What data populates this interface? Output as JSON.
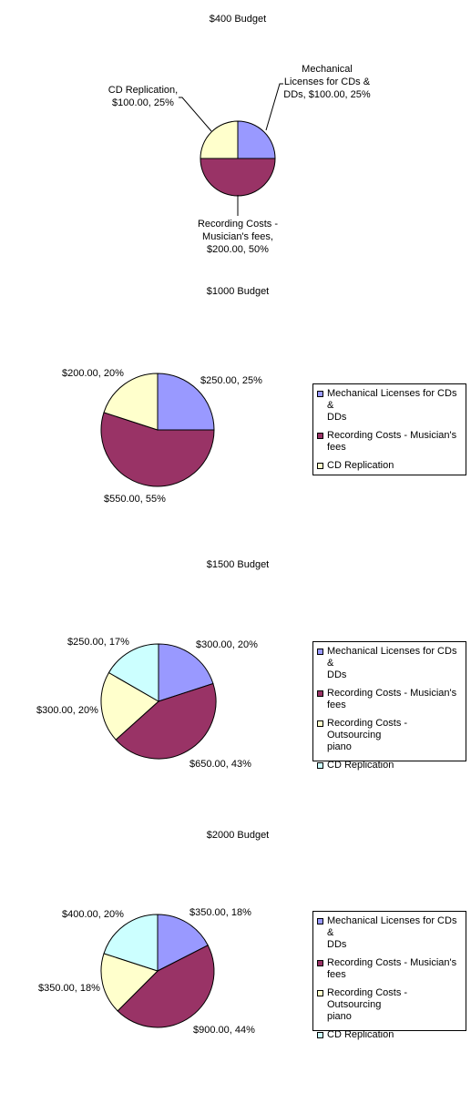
{
  "colors": {
    "mechanical": "#9999ff",
    "musicians": "#993366",
    "outsourcing": "#ffffcc",
    "replication_400": "#ffffcc",
    "replication": "#ccffff"
  },
  "chart_data": [
    {
      "type": "pie",
      "title": "$400 Budget",
      "slices": [
        {
          "label": "Mechanical Licenses for CDs & DDs",
          "value": 100.0,
          "percent": 25,
          "color_key": "mechanical"
        },
        {
          "label": "Recording Costs - Musician's fees",
          "value": 200.0,
          "percent": 50,
          "color_key": "musicians"
        },
        {
          "label": "CD Replication",
          "value": 100.0,
          "percent": 25,
          "color_key": "outsourcing"
        }
      ],
      "data_labels": [
        {
          "line1": "Mechanical",
          "line2": "Licenses for CDs &",
          "line3": "DDs, $100.00, 25%"
        },
        {
          "line1": "Recording Costs -",
          "line2": "Musician's fees,",
          "line3": "$200.00, 50%"
        },
        {
          "line1": "CD Replication,",
          "line2": "$100.00, 25%"
        }
      ],
      "legend": false
    },
    {
      "type": "pie",
      "title": "$1000 Budget",
      "slices": [
        {
          "label": "Mechanical Licenses for CDs & DDs",
          "value": 250.0,
          "percent": 25,
          "color_key": "mechanical"
        },
        {
          "label": "Recording Costs - Musician's fees",
          "value": 550.0,
          "percent": 55,
          "color_key": "musicians"
        },
        {
          "label": "CD Replication",
          "value": 200.0,
          "percent": 20,
          "color_key": "outsourcing"
        }
      ],
      "data_labels": [
        "$250.00, 25%",
        "$550.00, 55%",
        "$200.00, 20%"
      ],
      "legend": true,
      "legend_placement": "right",
      "legend_entries": [
        {
          "line1": "Mechanical Licenses for CDs &",
          "line2": "DDs",
          "color_key": "mechanical"
        },
        {
          "line1": "Recording Costs - Musician's",
          "line2": "fees",
          "color_key": "musicians"
        },
        {
          "line1": "CD Replication",
          "line2": "",
          "color_key": "outsourcing"
        }
      ]
    },
    {
      "type": "pie",
      "title": "$1500 Budget",
      "slices": [
        {
          "label": "Mechanical Licenses for CDs & DDs",
          "value": 300.0,
          "percent": 20,
          "color_key": "mechanical"
        },
        {
          "label": "Recording Costs - Musician's fees",
          "value": 650.0,
          "percent": 43,
          "color_key": "musicians"
        },
        {
          "label": "Recording Costs - Outsourcing piano",
          "value": 300.0,
          "percent": 20,
          "color_key": "outsourcing"
        },
        {
          "label": "CD Replication",
          "value": 250.0,
          "percent": 17,
          "color_key": "replication"
        }
      ],
      "data_labels": [
        "$300.00, 20%",
        "$650.00, 43%",
        "$300.00, 20%",
        "$250.00, 17%"
      ],
      "legend": true,
      "legend_placement": "right",
      "legend_entries": [
        {
          "line1": "Mechanical Licenses for CDs &",
          "line2": "DDs",
          "color_key": "mechanical"
        },
        {
          "line1": "Recording Costs - Musician's",
          "line2": "fees",
          "color_key": "musicians"
        },
        {
          "line1": "Recording Costs - Outsourcing",
          "line2": "piano",
          "color_key": "outsourcing"
        },
        {
          "line1": "CD Replication",
          "line2": "",
          "color_key": "replication"
        }
      ]
    },
    {
      "type": "pie",
      "title": "$2000 Budget",
      "slices": [
        {
          "label": "Mechanical Licenses for CDs & DDs",
          "value": 350.0,
          "percent": 18,
          "color_key": "mechanical"
        },
        {
          "label": "Recording Costs - Musician's fees",
          "value": 900.0,
          "percent": 44,
          "color_key": "musicians"
        },
        {
          "label": "Recording Costs - Outsourcing piano",
          "value": 350.0,
          "percent": 18,
          "color_key": "outsourcing"
        },
        {
          "label": "CD Replication",
          "value": 400.0,
          "percent": 20,
          "color_key": "replication"
        }
      ],
      "data_labels": [
        "$350.00, 18%",
        "$900.00, 44%",
        "$350.00, 18%",
        "$400.00, 20%"
      ],
      "legend": true,
      "legend_placement": "right",
      "legend_entries": [
        {
          "line1": "Mechanical Licenses for CDs &",
          "line2": "DDs",
          "color_key": "mechanical"
        },
        {
          "line1": "Recording Costs - Musician's",
          "line2": "fees",
          "color_key": "musicians"
        },
        {
          "line1": "Recording Costs - Outsourcing",
          "line2": "piano",
          "color_key": "outsourcing"
        },
        {
          "line1": "CD Replication",
          "line2": "",
          "color_key": "replication"
        }
      ]
    }
  ]
}
